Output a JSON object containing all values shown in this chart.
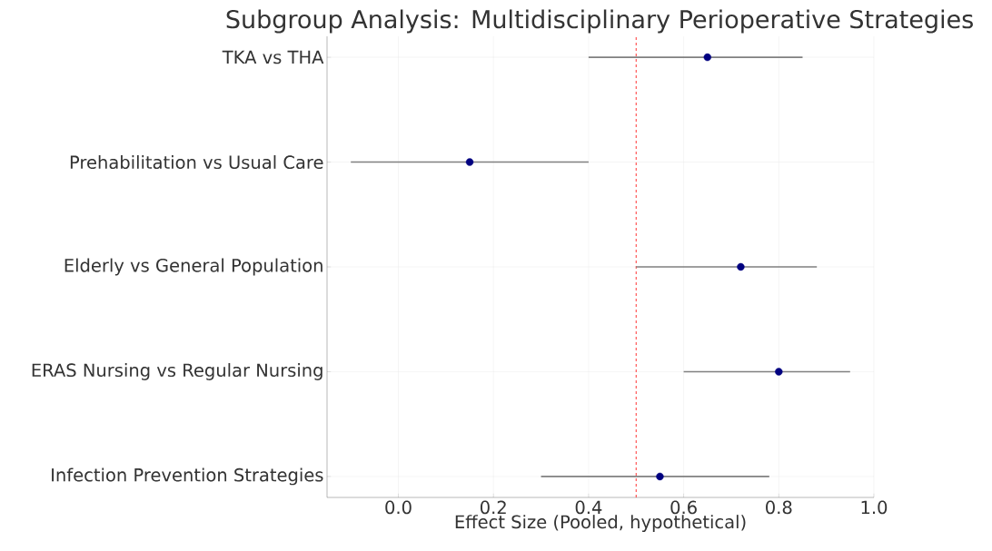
{
  "chart_data": {
    "type": "scatter",
    "title": "Subgroup Analysis: Multidisciplinary Perioperative Strategies",
    "xlabel": "Effect Size (Pooled, hypothetical)",
    "orientation": "horizontal",
    "categories": [
      "TKA vs THA",
      "Prehabilitation vs Usual Care",
      "Elderly vs General Population",
      "ERAS Nursing vs Regular Nursing",
      "Infection Prevention Strategies"
    ],
    "series": [
      {
        "color": "#000080",
        "values": [
          0.65,
          0.15,
          0.72,
          0.8,
          0.55
        ],
        "errors": [
          [
            0.4,
            0.85
          ],
          [
            -0.1,
            0.4
          ],
          [
            0.5,
            0.88
          ],
          [
            0.6,
            0.95
          ],
          [
            0.3,
            0.78
          ]
        ]
      }
    ],
    "xlim": [
      -0.15,
      1.0
    ],
    "xticks": [
      {
        "value": 0,
        "label": "0.0"
      },
      {
        "value": 0.2,
        "label": "0.2"
      },
      {
        "value": 0.4,
        "label": "0.4"
      },
      {
        "value": 0.6,
        "label": "0.6"
      },
      {
        "value": 0.8,
        "label": "0.8"
      },
      {
        "value": 1.0,
        "label": "1.0"
      }
    ],
    "ref_lines": [
      {
        "axis": "x",
        "value": 0.5,
        "color": "#ff0000",
        "line_style": "dashed"
      }
    ],
    "grid": true,
    "marker": "circle"
  }
}
